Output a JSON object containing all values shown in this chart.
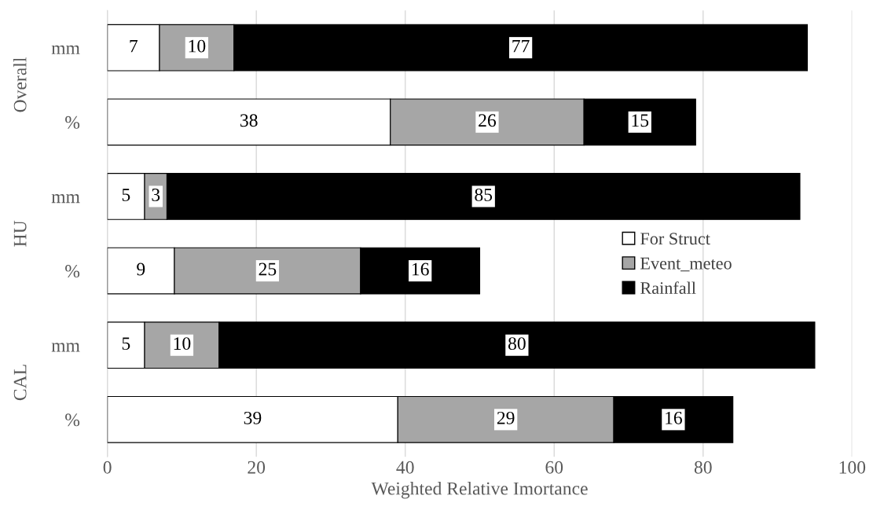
{
  "chart_data": {
    "type": "bar",
    "orientation": "horizontal",
    "stacked": true,
    "data_labels": true,
    "categories": [
      "mm",
      "%",
      "mm",
      "%",
      "mm",
      "%"
    ],
    "series": [
      {
        "name": "For Struct",
        "color": "#ffffff",
        "values": [
          7,
          38,
          5,
          9,
          5,
          39
        ]
      },
      {
        "name": "Event_meteo",
        "color": "#a6a6a6",
        "values": [
          10,
          26,
          3,
          25,
          10,
          29
        ]
      },
      {
        "name": "Rainfall",
        "color": "#000000",
        "values": [
          77,
          15,
          85,
          16,
          80,
          16
        ]
      }
    ],
    "xlabel": "Weighted Relative Imortance",
    "xlim": [
      0,
      100
    ],
    "xticks": [
      0,
      20,
      40,
      60,
      80,
      100
    ],
    "grid": "x",
    "legend": "right",
    "annotations": [
      "Overall",
      "HU",
      "CAL"
    ]
  }
}
